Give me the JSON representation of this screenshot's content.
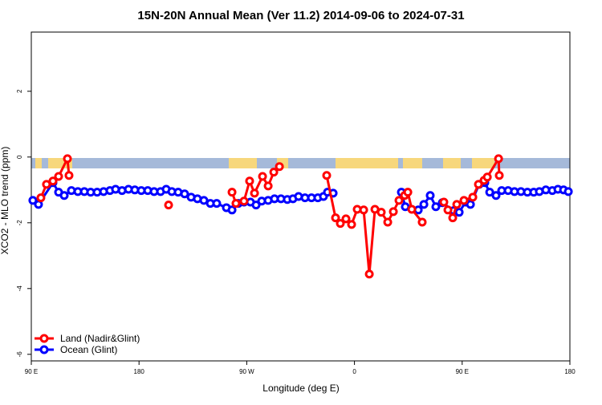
{
  "chart_data": {
    "type": "line",
    "title": "15N-20N Annual Mean (Ver 11.2)   2014-09-06 to 2024-07-31",
    "xlabel": "Longitude (deg E)",
    "ylabel": "XCO2 - MLO trend (ppm)",
    "xlim": [
      90,
      540
    ],
    "ylim": [
      -6.2,
      3.8
    ],
    "xticks": [
      {
        "value": 90,
        "label": "90 E"
      },
      {
        "value": 180,
        "label": "180"
      },
      {
        "value": 270,
        "label": "90 W"
      },
      {
        "value": 360,
        "label": "0"
      },
      {
        "value": 450,
        "label": "90 E"
      },
      {
        "value": 540,
        "label": "180"
      }
    ],
    "yticks": [
      -6,
      -4,
      -2,
      0,
      2
    ],
    "legend": "bottom-left",
    "series": [
      {
        "name": "Land (Nadir&Glint)",
        "color": "#ff0000",
        "x": [
          98.0,
          102.7,
          108.1,
          112.8,
          120.2,
          121.5,
          null,
          204.7,
          null,
          257.7,
          261.0,
          267.7,
          272.4,
          276.5,
          283.2,
          287.9,
          292.6,
          297.3,
          null,
          336.8,
          344.2,
          348.2,
          352.9,
          357.6,
          362.3,
          367.7,
          372.4,
          377.1,
          382.4,
          387.8,
          392.5,
          397.2,
          401.9,
          404.6,
          407.9,
          416.6,
          null,
          434.7,
          438.1,
          442.1,
          445.5,
          451.5,
          458.9,
          463.6,
          468.3,
          471.0,
          480.4,
          481.0
        ],
        "values": [
          -1.24,
          -0.83,
          -0.73,
          -0.59,
          -0.05,
          -0.56,
          null,
          -1.46,
          null,
          -1.07,
          -1.41,
          -1.34,
          -0.73,
          -1.1,
          -0.59,
          -0.88,
          -0.46,
          -0.29,
          null,
          -0.56,
          -1.85,
          -2.02,
          -1.88,
          -2.05,
          -1.59,
          -1.61,
          -3.56,
          -1.59,
          -1.68,
          -1.98,
          -1.66,
          -1.32,
          -1.17,
          -1.07,
          -1.59,
          -1.98,
          null,
          -1.37,
          -1.61,
          -1.85,
          -1.44,
          -1.32,
          -1.22,
          -0.83,
          -0.71,
          -0.61,
          -0.05,
          -0.56
        ]
      },
      {
        "name": "Ocean (Glint)",
        "color": "#0000ff",
        "x": [
          91.3,
          96.0,
          108.1,
          112.8,
          117.5,
          123.5,
          128.9,
          134.3,
          139.6,
          145.0,
          150.4,
          155.7,
          160.4,
          165.8,
          171.2,
          176.5,
          181.9,
          187.3,
          192.6,
          198.0,
          202.7,
          207.4,
          212.7,
          218.1,
          223.5,
          228.8,
          234.2,
          239.6,
          244.9,
          253.0,
          257.7,
          263.0,
          267.7,
          273.1,
          277.8,
          282.5,
          287.9,
          293.2,
          298.6,
          303.9,
          308.6,
          313.3,
          318.7,
          324.1,
          329.4,
          334.1,
          337.5,
          342.2,
          null,
          399.2,
          402.5,
          413.3,
          418.0,
          423.3,
          428.0,
          433.4,
          442.8,
          447.5,
          452.8,
          456.9,
          464.2,
          468.9,
          473.0,
          478.3,
          483.0,
          488.4,
          493.7,
          499.1,
          504.5,
          509.8,
          514.5,
          519.9,
          525.3,
          530.0,
          534.7,
          538.7
        ],
        "values": [
          -1.32,
          -1.44,
          -0.78,
          -1.07,
          -1.17,
          -1.02,
          -1.05,
          -1.05,
          -1.07,
          -1.07,
          -1.05,
          -1.02,
          -0.98,
          -1.02,
          -0.98,
          -1.0,
          -1.02,
          -1.02,
          -1.05,
          -1.05,
          -0.98,
          -1.05,
          -1.07,
          -1.12,
          -1.22,
          -1.27,
          -1.32,
          -1.41,
          -1.41,
          -1.54,
          -1.61,
          -1.41,
          -1.37,
          -1.37,
          -1.46,
          -1.34,
          -1.32,
          -1.27,
          -1.27,
          -1.29,
          -1.27,
          -1.2,
          -1.24,
          -1.24,
          -1.24,
          -1.2,
          -1.07,
          -1.1,
          null,
          -1.07,
          -1.51,
          -1.61,
          -1.44,
          -1.17,
          -1.51,
          -1.39,
          -1.63,
          -1.68,
          -1.37,
          -1.44,
          -0.83,
          -0.78,
          -1.07,
          -1.17,
          -1.02,
          -1.02,
          -1.05,
          -1.05,
          -1.07,
          -1.07,
          -1.05,
          -1.0,
          -1.02,
          -0.98,
          -1.0,
          -1.05
        ]
      }
    ]
  }
}
